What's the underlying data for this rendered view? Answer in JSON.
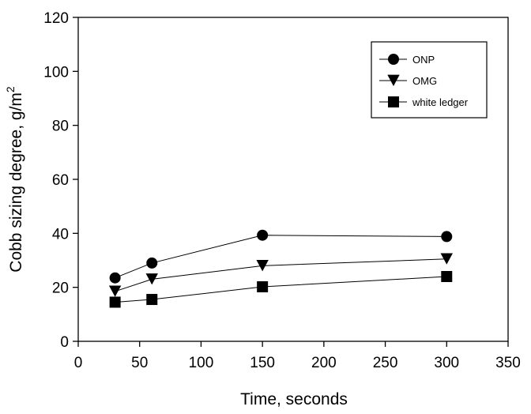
{
  "chart_data": {
    "type": "line",
    "title": "",
    "xlabel": "Time, seconds",
    "ylabel_main": "Cobb sizing degree, g/m",
    "ylabel_sup": "2",
    "xlim": [
      0,
      350
    ],
    "ylim": [
      0,
      120
    ],
    "xticks": [
      0,
      50,
      100,
      150,
      200,
      250,
      300,
      350
    ],
    "yticks": [
      0,
      20,
      40,
      60,
      80,
      100,
      120
    ],
    "grid": false,
    "legend_position": "top-right",
    "series": [
      {
        "name": "ONP",
        "marker": "circle",
        "x": [
          30,
          60,
          150,
          300
        ],
        "y": [
          23.5,
          29,
          39.3,
          38.8
        ]
      },
      {
        "name": "OMG",
        "marker": "triangle-down",
        "x": [
          30,
          60,
          150,
          300
        ],
        "y": [
          18.5,
          23,
          28,
          30.5
        ]
      },
      {
        "name": "white ledger",
        "marker": "square",
        "x": [
          30,
          60,
          150,
          300
        ],
        "y": [
          14.5,
          15.5,
          20.2,
          24
        ]
      }
    ]
  }
}
